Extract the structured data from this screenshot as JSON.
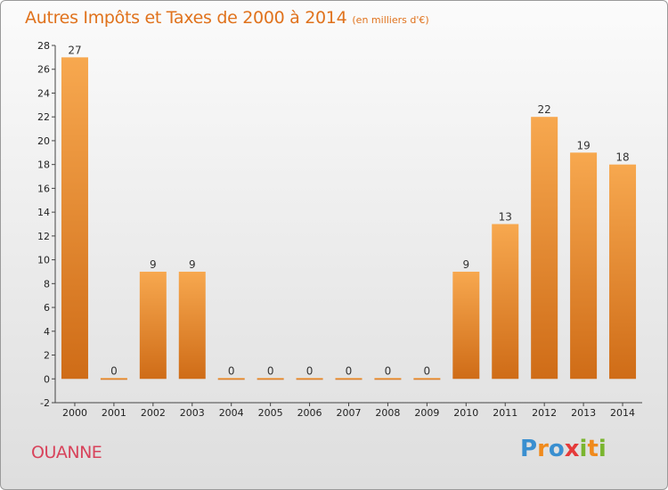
{
  "title": "Autres Impôts et Taxes de 2000 à 2014",
  "subtitle": "(en milliers d'€)",
  "commune": "OUANNE",
  "logo": "Proxiti",
  "colors": {
    "bar_top": "#f6a24c",
    "bar_bottom": "#d46f1a",
    "title": "#e0721c",
    "commune": "#d8435b"
  },
  "chart_data": {
    "type": "bar",
    "title": "Autres Impôts et Taxes de 2000 à 2014",
    "subtitle": "(en milliers d'€)",
    "categories": [
      "2000",
      "2001",
      "2002",
      "2003",
      "2004",
      "2005",
      "2006",
      "2007",
      "2008",
      "2009",
      "2010",
      "2011",
      "2012",
      "2013",
      "2014"
    ],
    "values": [
      27,
      0,
      9,
      9,
      0,
      0,
      0,
      0,
      0,
      0,
      9,
      13,
      22,
      19,
      18
    ],
    "ylim": [
      -2,
      28
    ],
    "yticks": [
      -2,
      0,
      2,
      4,
      6,
      8,
      10,
      12,
      14,
      16,
      18,
      20,
      22,
      24,
      26,
      28
    ],
    "grid": false,
    "legend": "none"
  }
}
